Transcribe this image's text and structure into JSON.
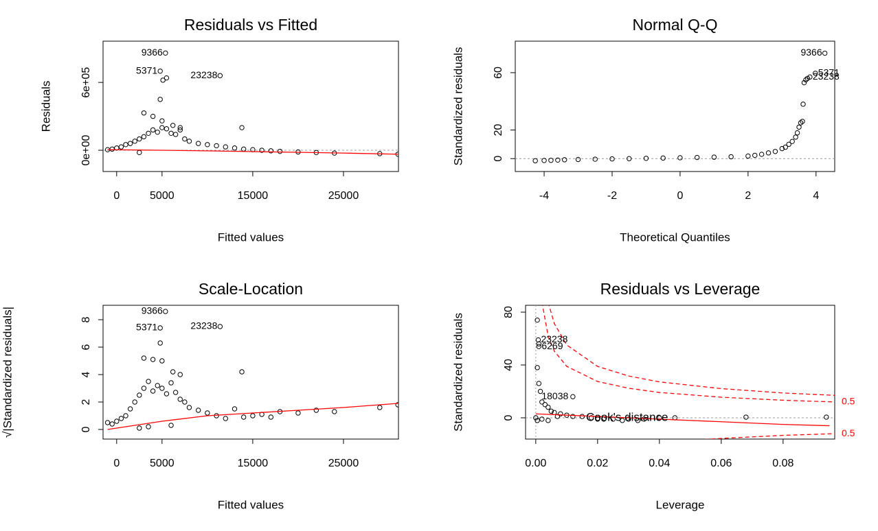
{
  "chart_data": [
    {
      "type": "scatter",
      "title": "Residuals vs Fitted",
      "x_label": "Fitted values",
      "y_label": "Residuals",
      "xlim": [
        -1500,
        31060
      ],
      "ylim": [
        -188000,
        965000
      ],
      "xticks": [
        0,
        5000,
        15000,
        25000
      ],
      "yticks": [
        {
          "value": 0,
          "label": "0e+00"
        },
        {
          "value": 600000,
          "label": "6e+05"
        }
      ],
      "x": [
        -1000,
        -500,
        0,
        500,
        1000,
        1500,
        2000,
        2500,
        3000,
        3500,
        4000,
        4500,
        5000,
        5500,
        6000,
        6500,
        7000,
        7500,
        8000,
        9000,
        10000,
        11000,
        12000,
        13000,
        14000,
        15000,
        16000,
        17000,
        18000,
        20000,
        22000,
        24000,
        29000,
        31000,
        3000,
        4000,
        4800,
        5000,
        6200,
        7000,
        13800,
        5380,
        4800,
        11400,
        5100,
        5500,
        2500
      ],
      "values": [
        5000,
        10000,
        20000,
        30000,
        50000,
        60000,
        80000,
        100000,
        120000,
        150000,
        180000,
        160000,
        200000,
        190000,
        150000,
        140000,
        180000,
        100000,
        80000,
        60000,
        50000,
        40000,
        30000,
        20000,
        10000,
        5000,
        0,
        -5000,
        -10000,
        -15000,
        -20000,
        -25000,
        -30000,
        -35000,
        330000,
        300000,
        450000,
        260000,
        220000,
        200000,
        200000,
        860000,
        700000,
        660000,
        620000,
        640000,
        -20000
      ],
      "smooth": {
        "color": "#ff0000",
        "x": [
          -1000,
          5000,
          10000,
          15000,
          20000,
          25000,
          31000
        ],
        "values": [
          5000,
          0,
          -5000,
          -12000,
          -18000,
          -25000,
          -35000
        ]
      },
      "hline": 0,
      "annotations": [
        {
          "text": "9366",
          "x": 5380,
          "y": 860000
        },
        {
          "text": "5371",
          "x": 4800,
          "y": 700000
        },
        {
          "text": "23238",
          "x": 11400,
          "y": 660000
        }
      ]
    },
    {
      "type": "scatter",
      "title": "Normal Q-Q",
      "x_label": "Theoretical Quantiles",
      "y_label": "Standardized residuals",
      "xlim": [
        -4.85,
        4.55
      ],
      "ylim": [
        -9,
        82
      ],
      "xticks": [
        -4,
        -2,
        0,
        2,
        4
      ],
      "yticks": [
        0,
        20,
        60
      ],
      "x": [
        -4.26,
        -4.0,
        -3.8,
        -3.6,
        -3.4,
        -3.0,
        -2.5,
        -2.0,
        -1.5,
        -1.0,
        -0.5,
        0,
        0.5,
        1.0,
        1.5,
        2.0,
        2.2,
        2.4,
        2.6,
        2.8,
        3.0,
        3.1,
        3.2,
        3.3,
        3.4,
        3.45,
        3.5,
        3.55,
        3.6,
        3.62,
        3.65,
        3.7,
        3.75,
        3.82,
        3.98,
        4.26
      ],
      "values": [
        -1.5,
        -1.3,
        -1.2,
        -1.0,
        -0.8,
        -0.6,
        -0.4,
        -0.2,
        0,
        0.2,
        0.4,
        0.6,
        0.8,
        1.0,
        1.3,
        1.8,
        2.3,
        3,
        4,
        5,
        7,
        8,
        10,
        12,
        15,
        18,
        22,
        25,
        26,
        38,
        53,
        55,
        56,
        57,
        59.6,
        73.6
      ],
      "hline": 0,
      "annotations": [
        {
          "text": "9366",
          "x": 4.26,
          "y": 73.6
        },
        {
          "text": "5371",
          "x": 3.98,
          "y": 59.6
        },
        {
          "text": "23238",
          "x": 3.82,
          "y": 57
        }
      ]
    },
    {
      "type": "scatter",
      "title": "Scale-Location",
      "x_label": "Fitted values",
      "y_label": "√|Standardized residuals|",
      "xlim": [
        -1500,
        31060
      ],
      "ylim": [
        -0.7,
        9.05
      ],
      "xticks": [
        0,
        5000,
        15000,
        25000
      ],
      "yticks": [
        0,
        2,
        4,
        6,
        8
      ],
      "x": [
        -1000,
        -500,
        0,
        500,
        1000,
        1500,
        2000,
        2500,
        3000,
        3500,
        4000,
        4500,
        5000,
        5500,
        6000,
        6500,
        7000,
        7500,
        8000,
        9000,
        10000,
        11000,
        12000,
        13000,
        14000,
        15000,
        16000,
        17000,
        18000,
        20000,
        22000,
        24000,
        29000,
        31000,
        3000,
        4000,
        4800,
        5000,
        6200,
        7000,
        13800,
        5380,
        4800,
        11400,
        2500,
        3500,
        6000
      ],
      "values": [
        0.5,
        0.4,
        0.6,
        0.8,
        1.0,
        1.5,
        2.0,
        2.5,
        3.0,
        3.5,
        2.8,
        3.2,
        3.0,
        2.6,
        3.4,
        2.7,
        2.2,
        2.0,
        1.6,
        1.4,
        1.2,
        1.0,
        0.8,
        1.5,
        0.9,
        1.0,
        1.1,
        0.9,
        1.3,
        1.2,
        1.4,
        1.3,
        1.6,
        1.8,
        5.2,
        5.1,
        6.3,
        5.0,
        4.2,
        4.0,
        4.2,
        8.6,
        7.4,
        7.5,
        0.1,
        0.2,
        0.3
      ],
      "smooth": {
        "color": "#ff0000",
        "x": [
          -1000,
          5000,
          10000,
          15000,
          20000,
          25000,
          31000
        ],
        "values": [
          0,
          0.6,
          1.0,
          1.2,
          1.4,
          1.6,
          1.9
        ]
      },
      "annotations": [
        {
          "text": "9366",
          "x": 5380,
          "y": 8.6
        },
        {
          "text": "5371",
          "x": 4800,
          "y": 7.4
        },
        {
          "text": "23238",
          "x": 11400,
          "y": 7.5
        }
      ]
    },
    {
      "type": "scatter",
      "title": "Residuals vs Leverage",
      "x_label": "Leverage",
      "y_label": "Standardized residuals",
      "xlim": [
        -0.0033,
        0.0967
      ],
      "ylim": [
        -16.1,
        85.2
      ],
      "xticks": [
        {
          "value": 0,
          "label": "0.00"
        },
        {
          "value": 0.02,
          "label": "0.02"
        },
        {
          "value": 0.04,
          "label": "0.04"
        },
        {
          "value": 0.06,
          "label": "0.06"
        },
        {
          "value": 0.08,
          "label": "0.08"
        }
      ],
      "yticks": [
        0,
        40,
        80
      ],
      "x": [
        0,
        0.0005,
        0.0008,
        0.001,
        0.001,
        0.0005,
        0.001,
        0.0015,
        0.002,
        0.003,
        0.004,
        0.005,
        0.006,
        0.008,
        0.01,
        0.012,
        0.012,
        0.015,
        0.018,
        0.02,
        0.022,
        0.025,
        0.028,
        0.03,
        0.033,
        0.035,
        0.04,
        0.045,
        0.068,
        0.094,
        0.0005,
        0.002,
        0.004,
        0.007
      ],
      "values": [
        0,
        74,
        59,
        56,
        54,
        38,
        26,
        20,
        12,
        10,
        8,
        5,
        4,
        3,
        2,
        16,
        1,
        1,
        0,
        -1,
        -1,
        -1,
        -2,
        -1,
        -2,
        -1,
        0,
        0,
        0.5,
        0.5,
        -2,
        -1,
        -2,
        1
      ],
      "smooth": {
        "color": "#ff0000",
        "x": [
          0,
          0.02,
          0.04,
          0.06,
          0.08,
          0.095
        ],
        "values": [
          3,
          1,
          -1,
          -3,
          -5,
          -6
        ]
      },
      "hline": 0,
      "vline": 0,
      "contours": [
        {
          "label": "0.5",
          "color": "#ff0000",
          "x": [
            0.002,
            0.004,
            0.006,
            0.01,
            0.02,
            0.03,
            0.04,
            0.06,
            0.08,
            0.0967
          ],
          "values": [
            87.7,
            61.9,
            50.5,
            39.0,
            27.5,
            22.4,
            19.2,
            15.6,
            13.3,
            12.0
          ]
        },
        {
          "color": "#ff0000",
          "x": [
            0.004,
            0.006,
            0.01,
            0.02,
            0.03,
            0.04,
            0.06,
            0.08,
            0.0967
          ],
          "values": [
            87.5,
            71.4,
            55.2,
            38.9,
            31.7,
            27.2,
            22.1,
            18.8,
            17.0
          ]
        },
        {
          "label": "0.5",
          "color": "#ff0000",
          "x": [
            0.05,
            0.06,
            0.08,
            0.0967
          ],
          "values": [
            -17.1,
            -15.6,
            -13.3,
            -12.0
          ]
        }
      ],
      "legend_text": "Cook's distance",
      "annotations": [
        {
          "text": "23238",
          "x": 0.0008,
          "y": 59
        },
        {
          "text": "6269",
          "x": 0.001,
          "y": 54
        },
        {
          "text": "18038",
          "x": 0.001,
          "y": 16
        }
      ]
    }
  ]
}
